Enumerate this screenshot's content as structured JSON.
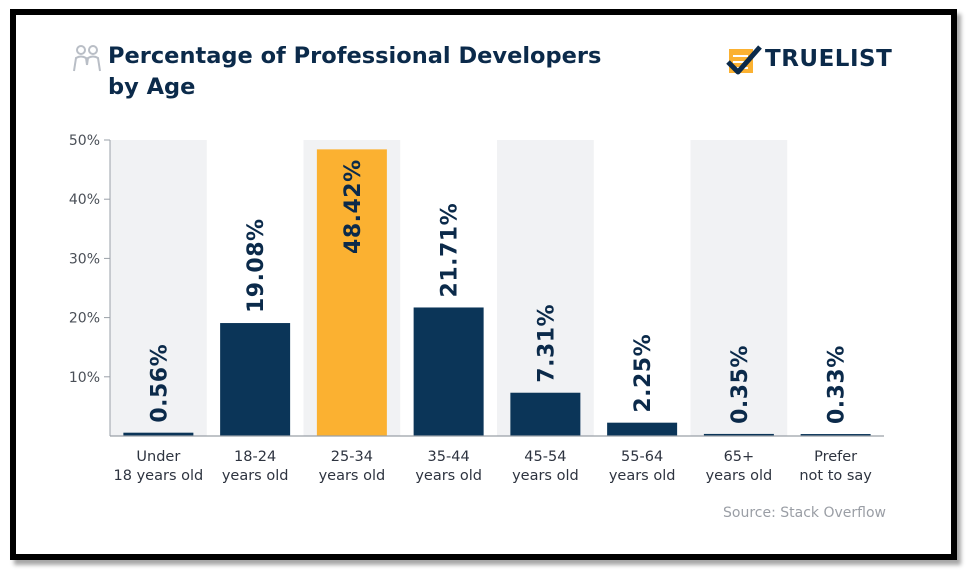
{
  "header": {
    "title_line1": "Percentage of Professional Developers",
    "title_line2": "by Age",
    "logo_text": "TRUELIST",
    "title_icon": "people-icon",
    "logo_icon": "checkbox-check-icon"
  },
  "footer": {
    "source": "Source: Stack Overflow"
  },
  "colors": {
    "bar_default": "#0b3558",
    "bar_highlight": "#fbb131",
    "band": "#f1f2f4",
    "title": "#0b2a4a",
    "logo_accent": "#fbb131"
  },
  "chart_data": {
    "type": "bar",
    "title": "Percentage of Professional Developers by Age",
    "categories": [
      [
        "Under",
        "18 years old"
      ],
      [
        "18-24",
        "years old"
      ],
      [
        "25-34",
        "years old"
      ],
      [
        "35-44",
        "years old"
      ],
      [
        "45-54",
        "years old"
      ],
      [
        "55-64",
        "years old"
      ],
      [
        "65+",
        "years old"
      ],
      [
        "Prefer",
        "not to say"
      ]
    ],
    "values": [
      0.56,
      19.08,
      48.42,
      21.71,
      7.31,
      2.25,
      0.35,
      0.33
    ],
    "value_labels": [
      "0.56%",
      "19.08%",
      "48.42%",
      "21.71%",
      "7.31%",
      "2.25%",
      "0.35%",
      "0.33%"
    ],
    "highlight_index": 2,
    "ylim": [
      0,
      50
    ],
    "yticks": [
      10,
      20,
      30,
      40,
      50
    ],
    "ytick_labels": [
      "10%",
      "20%",
      "30%",
      "40%",
      "50%"
    ],
    "xlabel": "",
    "ylabel": "",
    "grid": false,
    "legend": "none",
    "value_label_orientation": "vertical"
  }
}
